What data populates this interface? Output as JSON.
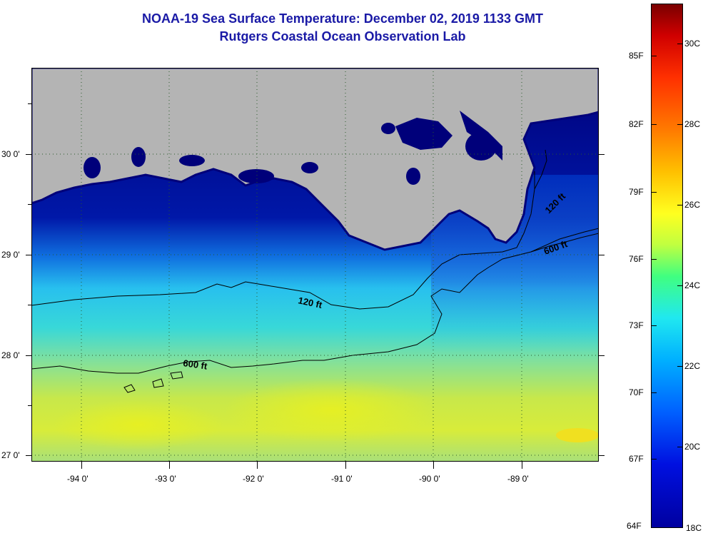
{
  "header": {
    "title": "NOAA-19 Sea Surface Temperature:  December 02, 2019 1133 GMT",
    "subtitle": "Rutgers Coastal Ocean Observation Lab"
  },
  "map": {
    "lat_labels": [
      "30 0'",
      "29 0'",
      "28 0'",
      "27 0'"
    ],
    "lon_labels": [
      "-94 0'",
      "-93 0'",
      "-92 0'",
      "-91 0'",
      "-90 0'",
      "-89 0'"
    ],
    "contours": [
      {
        "label": "120 ft"
      },
      {
        "label": "600 ft"
      },
      {
        "label": "120 ft"
      },
      {
        "label": "600 ft"
      }
    ],
    "colors": {
      "land": "#b4b4b4",
      "coast_deep": "#00007a",
      "cold": "#0a2ad0",
      "mid": "#2ad0ee",
      "warm": "#c8e84a"
    }
  },
  "colorbar": {
    "fahrenheit_labels": [
      "85F",
      "82F",
      "79F",
      "76F",
      "73F",
      "70F",
      "67F",
      "64F"
    ],
    "celsius_labels": [
      "30C",
      "28C",
      "26C",
      "24C",
      "22C",
      "20C",
      "18C"
    ],
    "colors": [
      "#7a0000",
      "#ff2000",
      "#ffa000",
      "#ffff00",
      "#30e0ff",
      "#0060ff",
      "#0000a0"
    ]
  }
}
